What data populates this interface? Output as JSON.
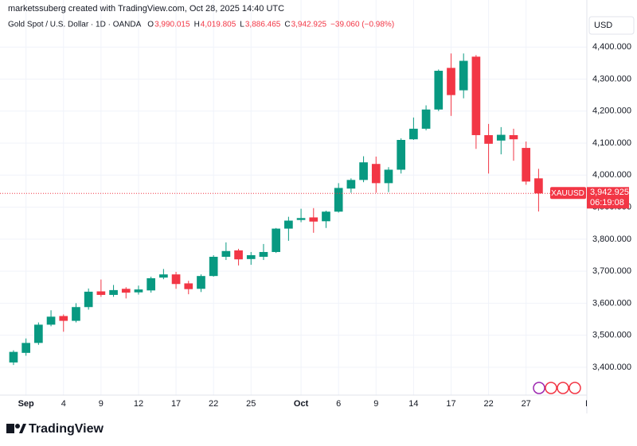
{
  "chart_data": {
    "type": "candlestick",
    "credit": "marketssuberg created with TradingView.com, Oct 28, 2025 14:40 UTC",
    "title": "Gold Spot / U.S. Dollar · 1D · OANDA",
    "ohlc_legend": {
      "o": "O",
      "o_value": "3,990.015",
      "h": "H",
      "h_value": "4,019.805",
      "l": "L",
      "l_value": "3,886.465",
      "c": "C",
      "c_value": "3,942.925",
      "change": "−39.060 (−0.98%)"
    },
    "currency": "USD",
    "symbol": "XAUUSD",
    "countdown": "06:19:08",
    "brand": "TradingView",
    "up_color": "#089981",
    "down_color": "#f23645",
    "xlim": [
      -1.08,
      45.86
    ],
    "xticks": [
      {
        "value": 1,
        "label": "Sep"
      },
      {
        "value": 4,
        "label": "4"
      },
      {
        "value": 7,
        "label": "9"
      },
      {
        "value": 10,
        "label": "12"
      },
      {
        "value": 13,
        "label": "17"
      },
      {
        "value": 16,
        "label": "22"
      },
      {
        "value": 19,
        "label": "25"
      },
      {
        "value": 23,
        "label": "Oct"
      },
      {
        "value": 26,
        "label": "6"
      },
      {
        "value": 29,
        "label": "9"
      },
      {
        "value": 32,
        "label": "14"
      },
      {
        "value": 35,
        "label": "17"
      },
      {
        "value": 38,
        "label": "22"
      },
      {
        "value": 41,
        "label": "27"
      },
      {
        "value": 46,
        "label": "N"
      }
    ],
    "ylim": [
      3313,
      4547
    ],
    "yticks": [
      {
        "value": 3400,
        "label": "3,400.000"
      },
      {
        "value": 3500,
        "label": "3,500.000"
      },
      {
        "value": 3600,
        "label": "3,600.000"
      },
      {
        "value": 3700,
        "label": "3,700.000"
      },
      {
        "value": 3800,
        "label": "3,800.000"
      },
      {
        "value": 3900,
        "label": "3,900.000"
      },
      {
        "value": 4000,
        "label": "4,000.000"
      },
      {
        "value": 4100,
        "label": "4,100.000"
      },
      {
        "value": 4200,
        "label": "4,200.000"
      },
      {
        "value": 4300,
        "label": "4,300.000"
      },
      {
        "value": 4400,
        "label": "4,400.000"
      }
    ],
    "grid": true,
    "open": [
      3415,
      3445,
      3476,
      3533,
      3560,
      3545,
      3588,
      3637,
      3626,
      3645,
      3634,
      3640,
      3680,
      3690,
      3662,
      3645,
      3685,
      3745,
      3765,
      3738,
      3745,
      3760,
      3833,
      3860,
      3868,
      3856,
      3886,
      3958,
      3985,
      4035,
      3975,
      4017,
      4112,
      4145,
      4205,
      4335,
      4265,
      4370,
      4125,
      4108,
      4125,
      4085,
      3990.015
    ],
    "high": [
      3453,
      3490,
      3540,
      3578,
      3565,
      3600,
      3646,
      3674,
      3657,
      3650,
      3655,
      3683,
      3707,
      3698,
      3670,
      3690,
      3750,
      3790,
      3770,
      3760,
      3785,
      3835,
      3870,
      3895,
      3897,
      3889,
      3975,
      3990,
      4059,
      4058,
      4025,
      4115,
      4180,
      4218,
      4330,
      4380,
      4380,
      4375,
      4160,
      4150,
      4145,
      4105,
      4019.805
    ],
    "low": [
      3407,
      3436,
      3470,
      3528,
      3511,
      3540,
      3580,
      3620,
      3620,
      3615,
      3627,
      3633,
      3675,
      3645,
      3628,
      3635,
      3683,
      3735,
      3718,
      3720,
      3735,
      3757,
      3795,
      3853,
      3820,
      3835,
      3883,
      3945,
      3978,
      3945,
      3947,
      4005,
      4110,
      4140,
      4200,
      4185,
      4240,
      4082,
      4005,
      4065,
      4045,
      3970,
      3886.465
    ],
    "close": [
      3448,
      3476,
      3533,
      3558,
      3545,
      3588,
      3636,
      3626,
      3641,
      3633,
      3643,
      3678,
      3690,
      3660,
      3644,
      3685,
      3745,
      3763,
      3737,
      3750,
      3760,
      3833,
      3858,
      3866,
      3855,
      3886,
      3960,
      3985,
      4040,
      3975,
      4017,
      4110,
      4145,
      4205,
      4326,
      4250,
      4357,
      4125,
      4098,
      4126,
      4112,
      3980,
      3942.925
    ]
  }
}
